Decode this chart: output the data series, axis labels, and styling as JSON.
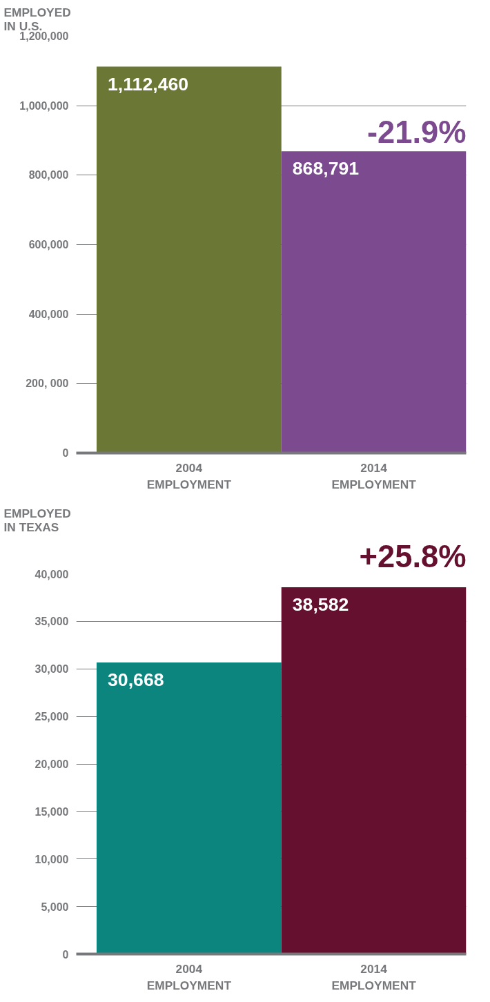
{
  "chart_data": [
    {
      "type": "bar",
      "ylabel": "EMPLOYED\nIN U.S.",
      "categories": [
        "2004\nEMPLOYMENT",
        "2014\nEMPLOYMENT"
      ],
      "values": [
        1112460,
        868791
      ],
      "colors": [
        "#6b7734",
        "#7b4a8f"
      ],
      "value_labels": [
        "1,112,460",
        "868,791"
      ],
      "ylim": [
        0,
        1200000
      ],
      "yticks": [
        0,
        {
          "value": 200000,
          "label": "200, 000"
        },
        {
          "value": 400000,
          "label": "400,000"
        },
        {
          "value": 600000,
          "label": "600,000"
        },
        {
          "value": 800000,
          "label": "800,000"
        },
        {
          "value": 1000000,
          "label": "1,000,000"
        },
        {
          "value": 1200000,
          "label": "1,200,000"
        }
      ],
      "grid": "y",
      "annotations": [
        {
          "text": "-21.9%",
          "x": "2014\nEMPLOYMENT",
          "y": 868791
        }
      ]
    },
    {
      "type": "bar",
      "ylabel": "EMPLOYED\nIN TEXAS",
      "categories": [
        "2004\nEMPLOYMENT",
        "2014\nEMPLOYMENT"
      ],
      "values": [
        30668,
        38582
      ],
      "colors": [
        "#0d857f",
        "#66102f"
      ],
      "value_labels": [
        "30,668",
        "38,582"
      ],
      "ylim": [
        0,
        40000
      ],
      "yticks": [
        0,
        {
          "value": 5000,
          "label": "5,000"
        },
        {
          "value": 10000,
          "label": "10,000"
        },
        {
          "value": 15000,
          "label": "15,000"
        },
        {
          "value": 20000,
          "label": "20,000"
        },
        {
          "value": 25000,
          "label": "25,000"
        },
        {
          "value": 30000,
          "label": "30,000"
        },
        {
          "value": 35000,
          "label": "35,000"
        },
        {
          "value": 40000,
          "label": "40,000"
        }
      ],
      "grid": "y",
      "annotations": [
        "+25.8%"
      ]
    }
  ]
}
